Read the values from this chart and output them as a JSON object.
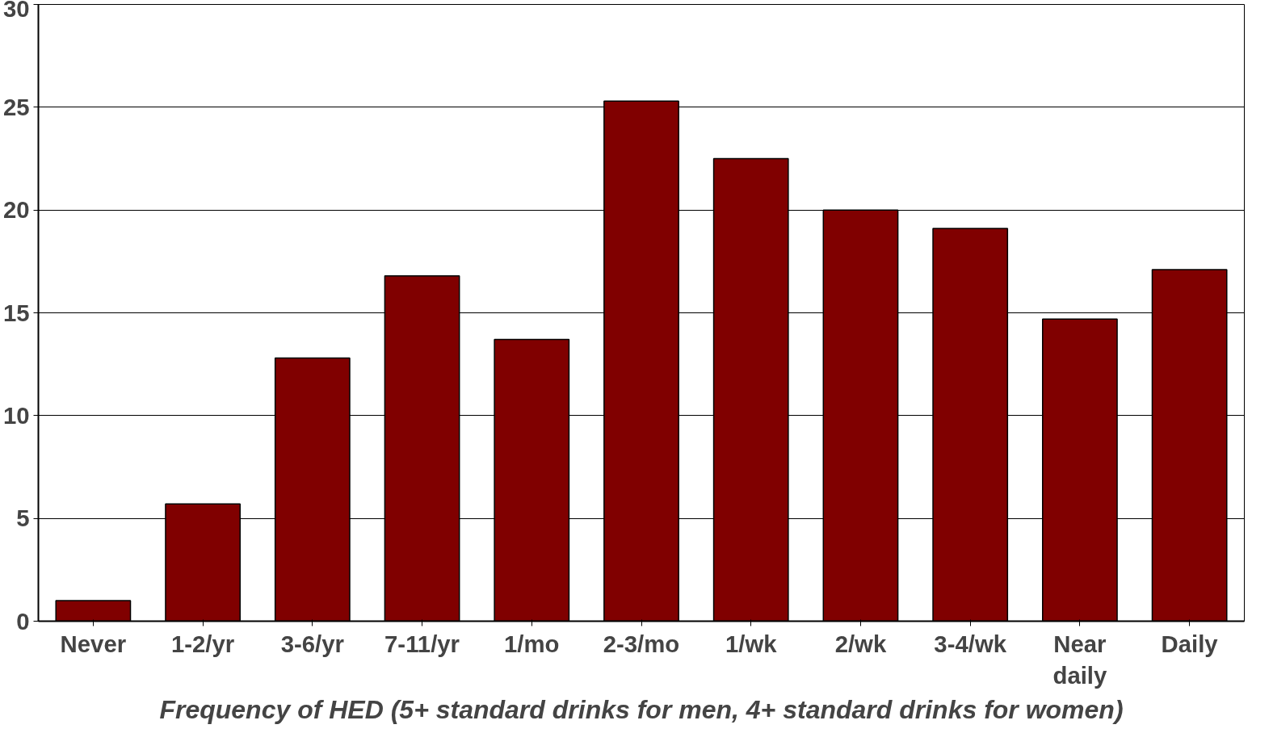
{
  "chart_data": {
    "type": "bar",
    "xlabel": "Frequency of HED (5+ standard drinks for men, 4+ standard drinks for women)",
    "categories": [
      "Never",
      "1-2/yr",
      "3-6/yr",
      "7-11/yr",
      "1/mo",
      "2-3/mo",
      "1/wk",
      "2/wk",
      "3-4/wk",
      "Near\ndaily",
      "Daily"
    ],
    "values": [
      1.0,
      5.7,
      12.8,
      16.8,
      13.7,
      25.3,
      22.5,
      20.0,
      19.1,
      14.7,
      17.1
    ],
    "color": "#800000",
    "ylim": [
      0,
      30
    ],
    "yticks": [
      0,
      5,
      10,
      15,
      20,
      25,
      30
    ],
    "grid": "y"
  }
}
